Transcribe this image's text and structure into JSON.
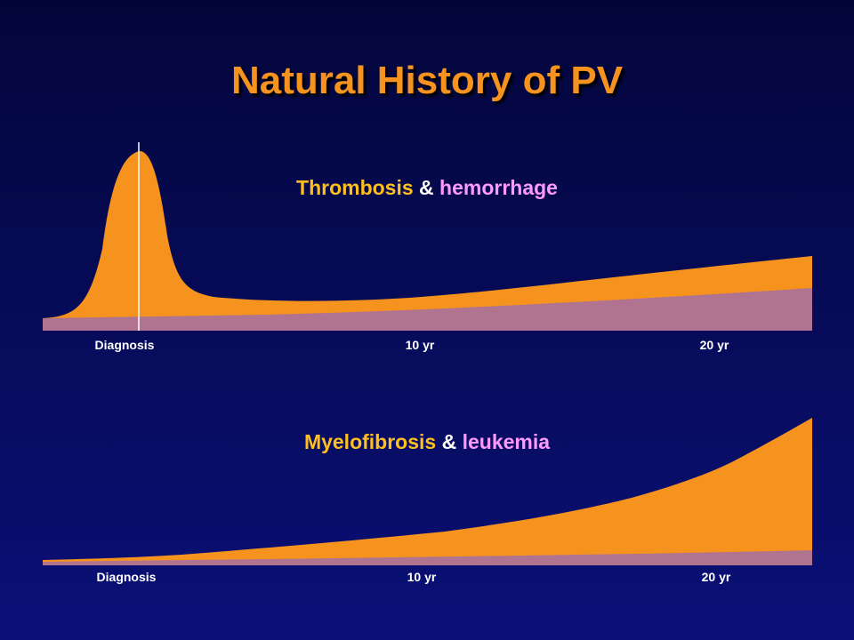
{
  "title": "Natural History of PV",
  "panels": [
    {
      "label_a": "Thrombosis",
      "label_amp": "&",
      "label_b": "hemorrhage",
      "ticks": [
        "Diagnosis",
        "10 yr",
        "20 yr"
      ],
      "colors": {
        "a": "#f5931e",
        "b": "#b07490"
      }
    },
    {
      "label_a": "Myelofibrosis",
      "label_amp": "&",
      "label_b": "leukemia",
      "ticks": [
        "Diagnosis",
        "10 yr",
        "20 yr"
      ],
      "colors": {
        "a": "#f5931e",
        "b": "#b07490"
      }
    }
  ]
}
